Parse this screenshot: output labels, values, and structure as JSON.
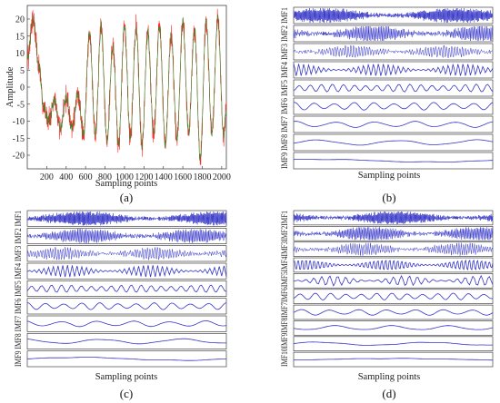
{
  "chart_data": [
    {
      "panel": "(a)",
      "type": "line",
      "xlabel": "Sampling points",
      "ylabel": "Amplitude",
      "xlim": [
        0,
        2048
      ],
      "ylim": [
        -24,
        24
      ],
      "xticks": [
        200,
        400,
        600,
        800,
        1000,
        1200,
        1400,
        1600,
        1800,
        2000
      ],
      "yticks": [
        20,
        15,
        10,
        5,
        0,
        -5,
        -10,
        -15,
        -20
      ],
      "xtick_labels": [
        "200",
        "400",
        "600",
        "800",
        "1000",
        "1200",
        "1400",
        "1600",
        "1800",
        "2000"
      ],
      "ytick_labels": [
        "20",
        "15",
        "10",
        "5",
        "0",
        "-5",
        "-10",
        "-15",
        "-20"
      ],
      "series": [
        {
          "color": "#ff2a2a",
          "role": "raw signal"
        },
        {
          "color": "#2e8b2e",
          "role": "smoothed"
        }
      ],
      "envelope": {
        "x": [
          0,
          60,
          120,
          170,
          220,
          280,
          340,
          400,
          460,
          520,
          580,
          640,
          700,
          760,
          820,
          880,
          940,
          1000,
          1060,
          1120,
          1180,
          1240,
          1300,
          1360,
          1420,
          1480,
          1540,
          1600,
          1660,
          1720,
          1780,
          1840,
          1900,
          1960,
          2020,
          2048
        ],
        "y": [
          8,
          20,
          6,
          -6,
          -10,
          -4,
          -12,
          -3,
          -12,
          -2,
          -14,
          16,
          -14,
          18,
          -16,
          12,
          -17,
          18,
          -15,
          17,
          -17,
          16,
          -14,
          18,
          -17,
          15,
          -15,
          19,
          -13,
          17,
          -21,
          19,
          -13,
          20,
          -14,
          -6
        ]
      }
    },
    {
      "panel": "(b)",
      "type": "line",
      "xlabel": "Sampling points",
      "imf_labels": [
        "IMF1",
        "IMF2",
        "IMF3",
        "IMF4",
        "IMF5",
        "IMF6",
        "IMF7",
        "IMF8",
        "IMF9"
      ],
      "line_color": "#3535c8",
      "component_frequency_cycles": [
        240,
        140,
        75,
        40,
        18,
        10,
        5,
        2.5,
        0.9
      ],
      "component_amplitude": [
        0.8,
        0.85,
        0.8,
        0.75,
        0.7,
        0.7,
        0.55,
        0.5,
        0.3
      ]
    },
    {
      "panel": "(c)",
      "type": "line",
      "xlabel": "Sampling points",
      "imf_labels": [
        "IMF1",
        "IMF2",
        "IMF3",
        "IMF4",
        "IMF5",
        "IMF6",
        "IMF7",
        "IMF8",
        "IMF9"
      ],
      "line_color": "#3535c8",
      "component_frequency_cycles": [
        240,
        140,
        80,
        42,
        20,
        11,
        5.5,
        2.5,
        1
      ],
      "component_amplitude": [
        0.8,
        0.85,
        0.8,
        0.75,
        0.7,
        0.65,
        0.55,
        0.5,
        0.35
      ]
    },
    {
      "panel": "(d)",
      "type": "line",
      "xlabel": "Sampling points",
      "imf_labels": [
        "IMF1",
        "IMF2",
        "IMF3",
        "IMF4",
        "IMF5",
        "IMF6",
        "IMF7",
        "IMF8",
        "IMF9",
        "IMF10"
      ],
      "line_color": "#3535c8",
      "component_frequency_cycles": [
        240,
        150,
        90,
        50,
        25,
        13,
        7,
        3.5,
        1.8,
        0.7
      ],
      "component_amplitude": [
        0.8,
        0.85,
        0.8,
        0.8,
        0.7,
        0.7,
        0.6,
        0.5,
        0.4,
        0.25
      ]
    }
  ],
  "panel_labels": [
    "(a)",
    "(b)",
    "(c)",
    "(d)"
  ]
}
